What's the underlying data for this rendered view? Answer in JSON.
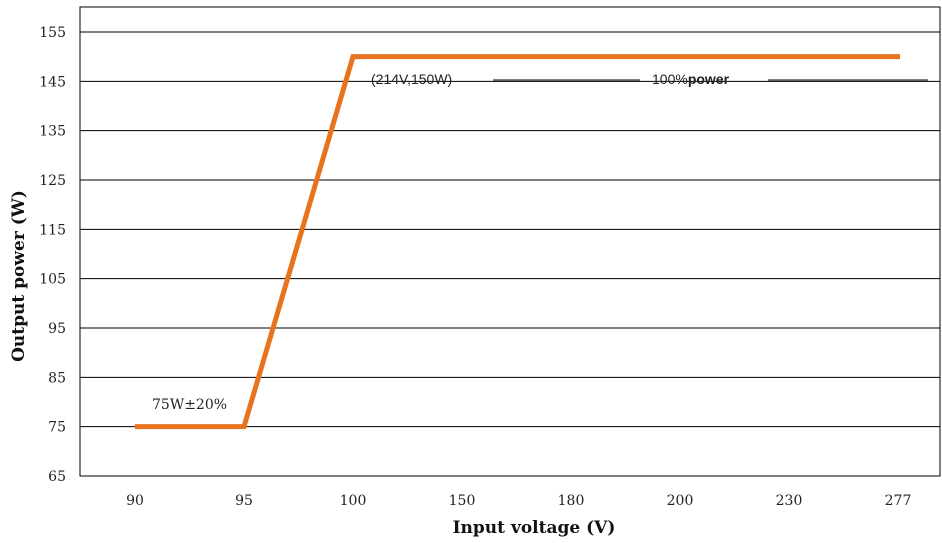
{
  "chart_data": {
    "type": "line",
    "title": "",
    "xlabel": "Input voltage (V)",
    "ylabel": "Output power (W)",
    "categories": [
      "90",
      "95",
      "100",
      "150",
      "180",
      "200",
      "230",
      "277"
    ],
    "ylim": [
      65,
      155
    ],
    "yticks": [
      "65",
      "75",
      "85",
      "95",
      "105",
      "115",
      "125",
      "135",
      "145",
      "155"
    ],
    "grid": "horizontal",
    "line_color": "#E8731F",
    "series": [
      {
        "x": [
          "90",
          "95",
          "100",
          "150",
          "180",
          "200",
          "230",
          "277"
        ],
        "values": [
          75,
          75,
          150,
          150,
          150,
          150,
          150,
          150
        ]
      }
    ],
    "annotations": {
      "low": "75W±20%",
      "knee": "(214V,150W)",
      "full_prefix": "100%",
      "full_bold": "power"
    }
  }
}
